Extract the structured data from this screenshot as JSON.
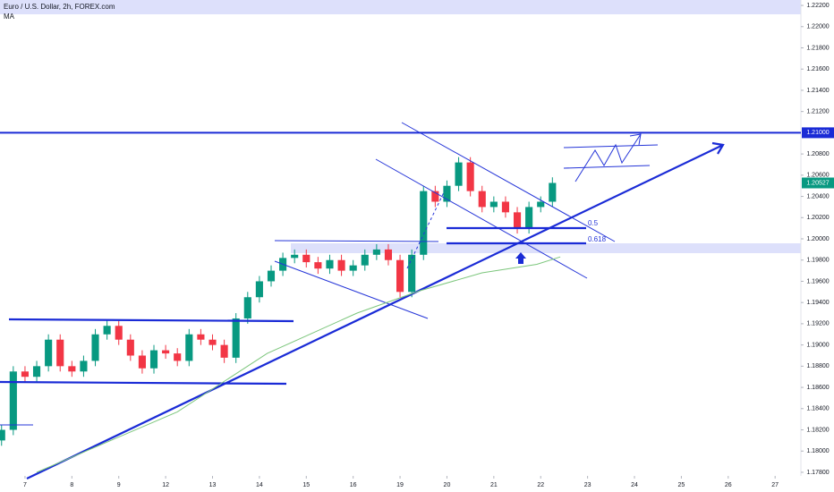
{
  "chart_data": {
    "type": "candlestick",
    "title": "Euro / U.S. Dollar, 2h, FOREX.com",
    "indicator": "MA",
    "up_color": "#089981",
    "down_color": "#f23645",
    "x": [
      -6,
      -3,
      0,
      3,
      6,
      9,
      12,
      15,
      18,
      21,
      24,
      27,
      30,
      33,
      36,
      39,
      42,
      45,
      48,
      51,
      54,
      57,
      60,
      63,
      66,
      69,
      72,
      75,
      78,
      81,
      84,
      87,
      90,
      93,
      96,
      99,
      102,
      105,
      108,
      111,
      114,
      117,
      120,
      123,
      126,
      129,
      132,
      135
    ],
    "open": [
      1.181,
      1.182,
      1.1875,
      1.187,
      1.188,
      1.1905,
      1.188,
      1.1875,
      1.1885,
      1.191,
      1.1918,
      1.1905,
      1.189,
      1.1878,
      1.1895,
      1.1892,
      1.1885,
      1.191,
      1.1905,
      1.19,
      1.1888,
      1.1925,
      1.1945,
      1.196,
      1.197,
      1.1982,
      1.1985,
      1.1978,
      1.1972,
      1.198,
      1.197,
      1.1975,
      1.1985,
      1.199,
      1.198,
      1.195,
      1.1985,
      1.2045,
      1.2035,
      1.205,
      1.2072,
      1.2045,
      1.203,
      1.2035,
      1.2025,
      1.201,
      1.203,
      1.2035
    ],
    "high": [
      1.1825,
      1.188,
      1.188,
      1.1885,
      1.191,
      1.191,
      1.1885,
      1.189,
      1.1915,
      1.1923,
      1.1923,
      1.191,
      1.1895,
      1.19,
      1.19,
      1.1897,
      1.1915,
      1.1915,
      1.191,
      1.1905,
      1.193,
      1.195,
      1.1965,
      1.1975,
      1.1987,
      1.199,
      1.199,
      1.1983,
      1.1985,
      1.1985,
      1.198,
      1.199,
      1.1995,
      1.1995,
      1.1985,
      1.199,
      1.205,
      1.205,
      1.2055,
      1.2077,
      1.2077,
      1.205,
      1.204,
      1.204,
      1.203,
      1.2035,
      1.204,
      1.2058
    ],
    "low": [
      1.1805,
      1.1815,
      1.1865,
      1.1865,
      1.1875,
      1.1875,
      1.187,
      1.187,
      1.188,
      1.1905,
      1.19,
      1.1885,
      1.1873,
      1.1873,
      1.1887,
      1.188,
      1.188,
      1.19,
      1.1895,
      1.1883,
      1.1883,
      1.192,
      1.194,
      1.1955,
      1.1965,
      1.1977,
      1.1973,
      1.1967,
      1.1967,
      1.1965,
      1.1965,
      1.197,
      1.198,
      1.1975,
      1.1945,
      1.1945,
      1.198,
      1.203,
      1.203,
      1.2045,
      1.204,
      1.2025,
      1.2025,
      1.202,
      1.2005,
      1.2005,
      1.2025,
      1.203
    ],
    "close": [
      1.182,
      1.1875,
      1.187,
      1.188,
      1.1905,
      1.188,
      1.1875,
      1.1885,
      1.191,
      1.1918,
      1.1905,
      1.189,
      1.1878,
      1.1895,
      1.1892,
      1.1885,
      1.191,
      1.1905,
      1.19,
      1.1888,
      1.1925,
      1.1945,
      1.196,
      1.197,
      1.1982,
      1.1985,
      1.1978,
      1.1972,
      1.198,
      1.197,
      1.1975,
      1.1985,
      1.199,
      1.198,
      1.195,
      1.1985,
      1.2045,
      1.2035,
      1.205,
      1.2072,
      1.2045,
      1.203,
      1.2035,
      1.2025,
      1.201,
      1.203,
      1.2035,
      1.20527
    ],
    "ma": {
      "color": "#7cc67c",
      "x": [
        3,
        39,
        62,
        85,
        101,
        117,
        131,
        137
      ],
      "values": [
        1.178,
        1.1837,
        1.1892,
        1.193,
        1.1951,
        1.1968,
        1.1976,
        1.1983
      ]
    },
    "xlim": [
      -6.4,
      198.6
    ],
    "ylim": [
      1.17766,
      1.22251
    ],
    "xticks": [
      {
        "value": 0,
        "label": "7"
      },
      {
        "value": 12,
        "label": "8"
      },
      {
        "value": 24,
        "label": "9"
      },
      {
        "value": 36,
        "label": "12"
      },
      {
        "value": 48,
        "label": "13"
      },
      {
        "value": 60,
        "label": "14"
      },
      {
        "value": 72,
        "label": "15"
      },
      {
        "value": 84,
        "label": "16"
      },
      {
        "value": 96,
        "label": "19"
      },
      {
        "value": 108,
        "label": "20"
      },
      {
        "value": 120,
        "label": "21"
      },
      {
        "value": 132,
        "label": "22"
      },
      {
        "value": 144,
        "label": "23"
      },
      {
        "value": 156,
        "label": "24"
      },
      {
        "value": 168,
        "label": "25"
      },
      {
        "value": 180,
        "label": "26"
      },
      {
        "value": 192,
        "label": "27"
      }
    ],
    "yticks": [
      {
        "value": 1.178,
        "label": "1.17800"
      },
      {
        "value": 1.18,
        "label": "1.18000"
      },
      {
        "value": 1.182,
        "label": "1.18200"
      },
      {
        "value": 1.184,
        "label": "1.18400"
      },
      {
        "value": 1.186,
        "label": "1.18600"
      },
      {
        "value": 1.188,
        "label": "1.18800"
      },
      {
        "value": 1.19,
        "label": "1.19000"
      },
      {
        "value": 1.192,
        "label": "1.19200"
      },
      {
        "value": 1.194,
        "label": "1.19400"
      },
      {
        "value": 1.196,
        "label": "1.19600"
      },
      {
        "value": 1.198,
        "label": "1.19800"
      },
      {
        "value": 1.2,
        "label": "1.20000"
      },
      {
        "value": 1.202,
        "label": "1.20200"
      },
      {
        "value": 1.204,
        "label": "1.20400"
      },
      {
        "value": 1.206,
        "label": "1.20600"
      },
      {
        "value": 1.208,
        "label": "1.20800"
      },
      {
        "value": 1.212,
        "label": "1.21200"
      },
      {
        "value": 1.214,
        "label": "1.21400"
      },
      {
        "value": 1.216,
        "label": "1.21600"
      },
      {
        "value": 1.218,
        "label": "1.21800"
      },
      {
        "value": 1.22,
        "label": "1.22000"
      },
      {
        "value": 1.222,
        "label": "1.22200"
      }
    ],
    "level": {
      "value": 1.21,
      "label": "1.21000",
      "color": "#1a2bd6"
    },
    "last_price": {
      "value": 1.20527,
      "label": "1.20527"
    },
    "fib_labels": [
      "0.5",
      "0.618"
    ]
  }
}
